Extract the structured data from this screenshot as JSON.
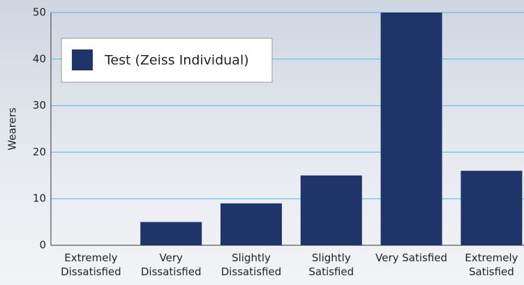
{
  "chart_data": {
    "type": "bar",
    "categories": [
      "Extremely Dissatisfied",
      "Very Dissatisfied",
      "Slightly Dissatisfied",
      "Slightly Satisfied",
      "Very Satisfied",
      "Extremely Satisfied"
    ],
    "series": [
      {
        "name": "Test (Zeiss Individual)",
        "color": "#1f3468",
        "values": [
          0,
          5,
          9,
          15,
          50,
          16
        ]
      }
    ],
    "y_label": "Wearers",
    "ylim": [
      0,
      50
    ],
    "yticks": [
      0,
      10,
      20,
      30,
      40,
      50
    ],
    "grid": true,
    "legend": "upper left"
  }
}
